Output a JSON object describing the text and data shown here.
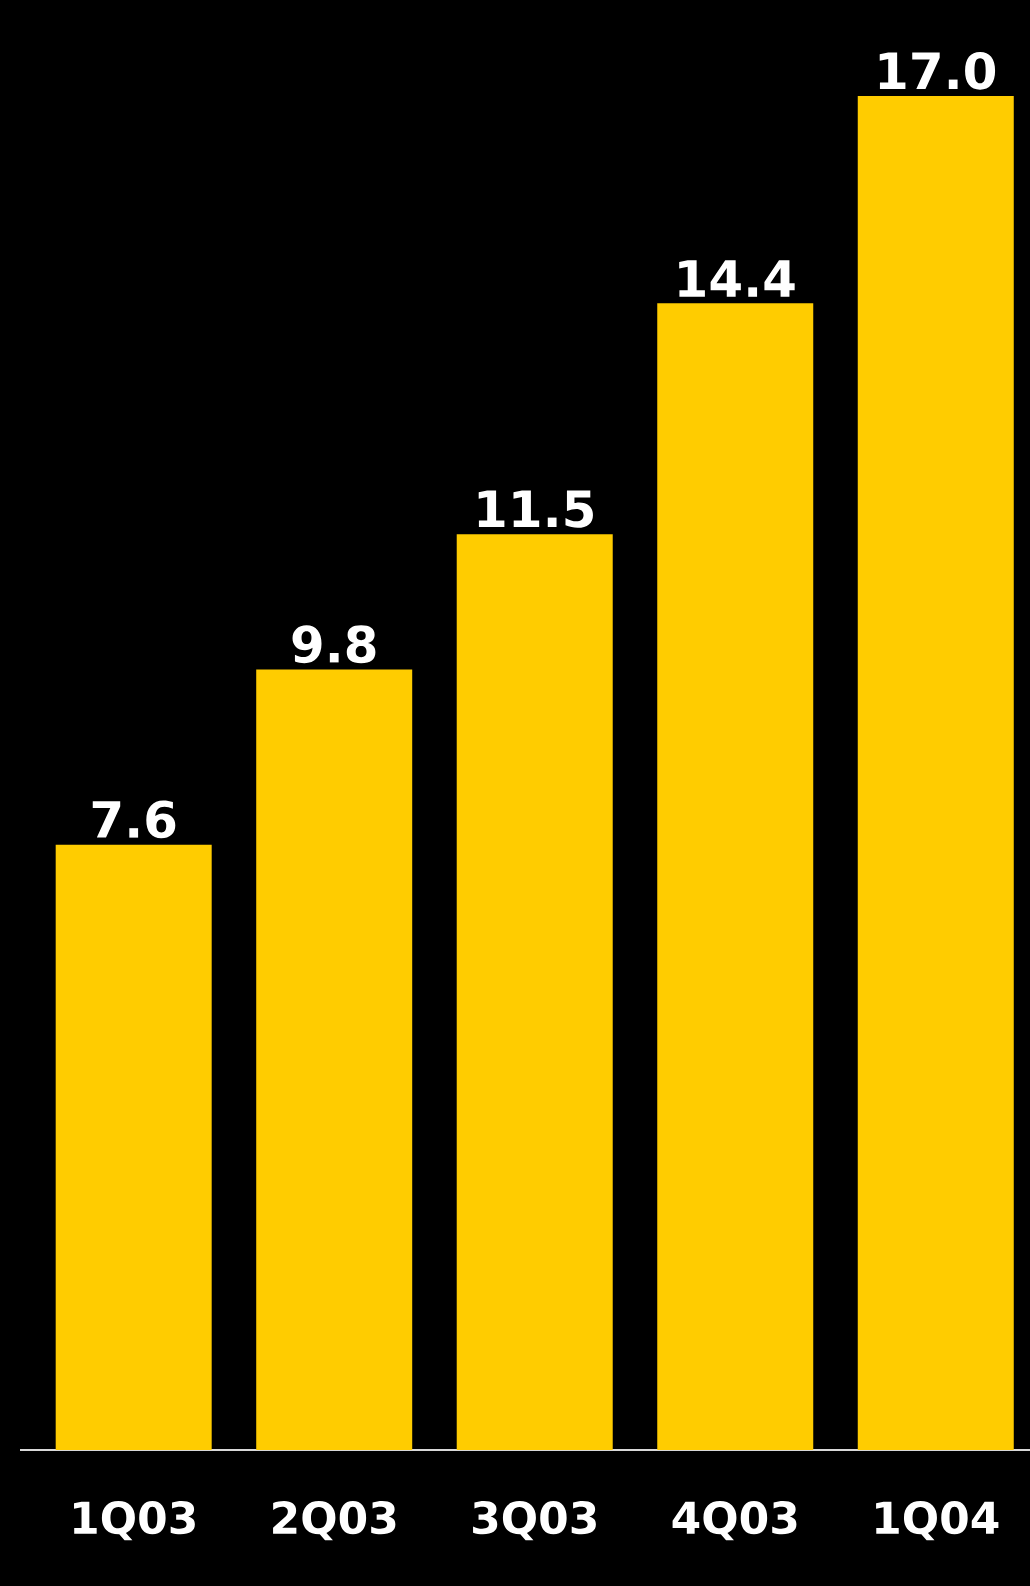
{
  "chart_data": {
    "type": "bar",
    "categories": [
      "1Q03",
      "2Q03",
      "3Q03",
      "4Q03",
      "1Q04"
    ],
    "values": [
      7.6,
      9.8,
      11.5,
      14.4,
      17.0
    ],
    "value_labels": [
      "7.6",
      "9.8",
      "11.5",
      "14.4",
      "17.0"
    ],
    "color": "#ffcc00"
  }
}
